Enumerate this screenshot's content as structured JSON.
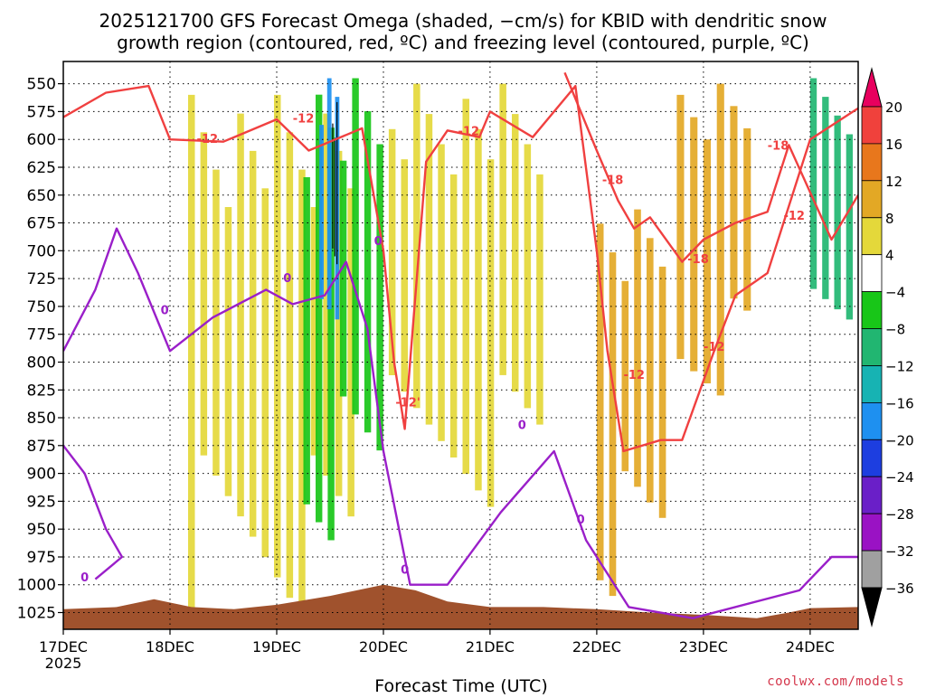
{
  "chart_data": {
    "type": "heatmap",
    "title_lines": [
      "2025121700 GFS Forecast Omega (shaded, −cm/s) for KBID with dendritic snow",
      "growth region (contoured, red, ºC) and freezing level (contoured, purple, ºC)"
    ],
    "xlabel": "Forecast Time (UTC)",
    "ylabel": "",
    "x_ticks": [
      "17DEC",
      "18DEC",
      "19DEC",
      "20DEC",
      "21DEC",
      "22DEC",
      "23DEC",
      "24DEC"
    ],
    "x_tick_values": [
      0,
      1,
      2,
      3,
      4,
      5,
      6,
      7
    ],
    "x_year_label": "2025",
    "xlim": [
      0,
      7.45
    ],
    "y_ticks": [
      550,
      575,
      600,
      625,
      650,
      675,
      700,
      725,
      750,
      775,
      800,
      825,
      850,
      875,
      900,
      925,
      950,
      975,
      1000,
      1025
    ],
    "ylim": [
      530,
      1040
    ],
    "y_inverted": true,
    "grid": true,
    "colorbar": {
      "labels": [
        "20",
        "16",
        "12",
        "8",
        "4",
        "−4",
        "−8",
        "−12",
        "−16",
        "−20",
        "−24",
        "−28",
        "−32",
        "−36"
      ],
      "colors": [
        "#e8005e",
        "#f0413c",
        "#e8771c",
        "#e3a825",
        "#e4d83a",
        "#ffffff",
        "#18c618",
        "#21b671",
        "#17b3b3",
        "#1e90f0",
        "#1d3ee0",
        "#6a1fc8",
        "#9a12c4",
        "#a0a0a0",
        "#000000"
      ]
    },
    "colors": {
      "terrain": "#a0522d",
      "dgz_contour": "#f04040",
      "freezing_contour": "#9a1fc9"
    },
    "omega_regions": [
      {
        "x": [
          1.17,
          2.78
        ],
        "p": [
          560,
          1030
        ],
        "level": "weak upward",
        "band": "4 to 8"
      },
      {
        "x": [
          2.25,
          3.05
        ],
        "p": [
          545,
          960
        ],
        "level": "downward",
        "band": "-4 to -12"
      },
      {
        "x": [
          2.4,
          2.62
        ],
        "p": [
          545,
          780
        ],
        "level": "strong downward",
        "band": "-16 to -24"
      },
      {
        "x": [
          2.52,
          2.58
        ],
        "p": [
          560,
          740
        ],
        "level": "strongest downward",
        "band": "below -36"
      },
      {
        "x": [
          3.05,
          4.55
        ],
        "p": [
          550,
          930
        ],
        "level": "weak upward",
        "band": "4 to 8"
      },
      {
        "x": [
          5.0,
          5.7
        ],
        "p": [
          650,
          1010
        ],
        "level": "upward",
        "band": "4 to 12"
      },
      {
        "x": [
          5.75,
          6.5
        ],
        "p": [
          550,
          830
        ],
        "level": "upward",
        "band": "4 to 12"
      },
      {
        "x": [
          7.0,
          7.45
        ],
        "p": [
          545,
          780
        ],
        "level": "downward",
        "band": "-4 to -16"
      }
    ],
    "series": [
      {
        "name": "-12",
        "values": [
          [
            0.0,
            580
          ],
          [
            0.4,
            558
          ],
          [
            0.8,
            552
          ],
          [
            1.0,
            600
          ],
          [
            1.5,
            602
          ],
          [
            2.0,
            582
          ],
          [
            2.3,
            610
          ],
          [
            2.8,
            590
          ],
          [
            3.0,
            700
          ],
          [
            3.1,
            800
          ],
          [
            3.2,
            860
          ],
          [
            3.4,
            620
          ],
          [
            3.6,
            592
          ],
          [
            3.9,
            598
          ],
          [
            4.0,
            575
          ],
          [
            4.4,
            598
          ],
          [
            4.8,
            552
          ],
          [
            5.0,
            700
          ],
          [
            5.1,
            790
          ],
          [
            5.25,
            880
          ],
          [
            5.6,
            870
          ],
          [
            5.8,
            870
          ],
          [
            6.1,
            790
          ],
          [
            6.3,
            740
          ],
          [
            6.6,
            720
          ],
          [
            7.0,
            600
          ],
          [
            7.45,
            572
          ]
        ]
      },
      {
        "name": "-18",
        "values": [
          [
            4.7,
            540
          ],
          [
            5.0,
            610
          ],
          [
            5.2,
            655
          ],
          [
            5.35,
            680
          ],
          [
            5.5,
            670
          ],
          [
            5.8,
            710
          ],
          [
            6.0,
            690
          ],
          [
            6.3,
            675
          ],
          [
            6.6,
            665
          ],
          [
            6.8,
            605
          ],
          [
            7.2,
            690
          ],
          [
            7.45,
            650
          ]
        ]
      },
      {
        "name": "0",
        "values": [
          [
            0.0,
            790
          ],
          [
            0.3,
            735
          ],
          [
            0.5,
            680
          ],
          [
            0.7,
            720
          ],
          [
            1.0,
            790
          ],
          [
            1.4,
            760
          ],
          [
            1.9,
            735
          ],
          [
            2.15,
            748
          ],
          [
            2.45,
            740
          ],
          [
            2.65,
            710
          ],
          [
            2.85,
            770
          ],
          [
            3.0,
            880
          ],
          [
            3.25,
            1000
          ],
          [
            3.6,
            1000
          ],
          [
            4.1,
            935
          ],
          [
            4.6,
            880
          ],
          [
            4.9,
            960
          ],
          [
            5.3,
            1020
          ],
          [
            5.9,
            1030
          ],
          [
            6.9,
            1005
          ],
          [
            7.2,
            975
          ],
          [
            7.45,
            975
          ]
        ]
      },
      {
        "name": "0",
        "values": [
          [
            0.0,
            875
          ],
          [
            0.2,
            900
          ],
          [
            0.4,
            950
          ],
          [
            0.55,
            975
          ],
          [
            0.3,
            995
          ]
        ]
      }
    ],
    "contour_labels": [
      {
        "text": "-12",
        "x": 1.35,
        "p": 603,
        "series": "-12"
      },
      {
        "text": "-12",
        "x": 2.25,
        "p": 585,
        "series": "-12"
      },
      {
        "text": "-12",
        "x": 3.8,
        "p": 596,
        "series": "-12"
      },
      {
        "text": "-12'",
        "x": 3.23,
        "p": 840,
        "series": "-12"
      },
      {
        "text": "-12",
        "x": 5.35,
        "p": 815,
        "series": "-12"
      },
      {
        "text": "-12",
        "x": 6.1,
        "p": 790,
        "series": "-12"
      },
      {
        "text": "-12",
        "x": 6.85,
        "p": 672,
        "series": "-12"
      },
      {
        "text": "-18",
        "x": 5.15,
        "p": 640,
        "series": "-18"
      },
      {
        "text": "-18",
        "x": 5.95,
        "p": 711,
        "series": "-18"
      },
      {
        "text": "-18",
        "x": 6.7,
        "p": 609,
        "series": "-18"
      },
      {
        "text": "0",
        "x": 0.2,
        "p": 997,
        "series": "0"
      },
      {
        "text": "0",
        "x": 0.95,
        "p": 757,
        "series": "0"
      },
      {
        "text": "0",
        "x": 2.1,
        "p": 728,
        "series": "0"
      },
      {
        "text": "0",
        "x": 2.95,
        "p": 695,
        "series": "0"
      },
      {
        "text": "0",
        "x": 3.2,
        "p": 990,
        "series": "0"
      },
      {
        "text": "0",
        "x": 4.3,
        "p": 860,
        "series": "0"
      },
      {
        "text": "0",
        "x": 4.85,
        "p": 945,
        "series": "0"
      }
    ],
    "terrain_pressure": [
      [
        0.0,
        1022
      ],
      [
        0.5,
        1020
      ],
      [
        0.85,
        1013
      ],
      [
        1.2,
        1020
      ],
      [
        1.6,
        1022
      ],
      [
        2.0,
        1018
      ],
      [
        2.5,
        1010
      ],
      [
        3.0,
        1000
      ],
      [
        3.3,
        1005
      ],
      [
        3.6,
        1015
      ],
      [
        4.0,
        1020
      ],
      [
        4.5,
        1020
      ],
      [
        5.0,
        1022
      ],
      [
        5.5,
        1025
      ],
      [
        6.0,
        1027
      ],
      [
        6.5,
        1030
      ],
      [
        6.8,
        1025
      ],
      [
        7.0,
        1021
      ],
      [
        7.45,
        1020
      ]
    ]
  },
  "credit": "coolwx.com/models"
}
